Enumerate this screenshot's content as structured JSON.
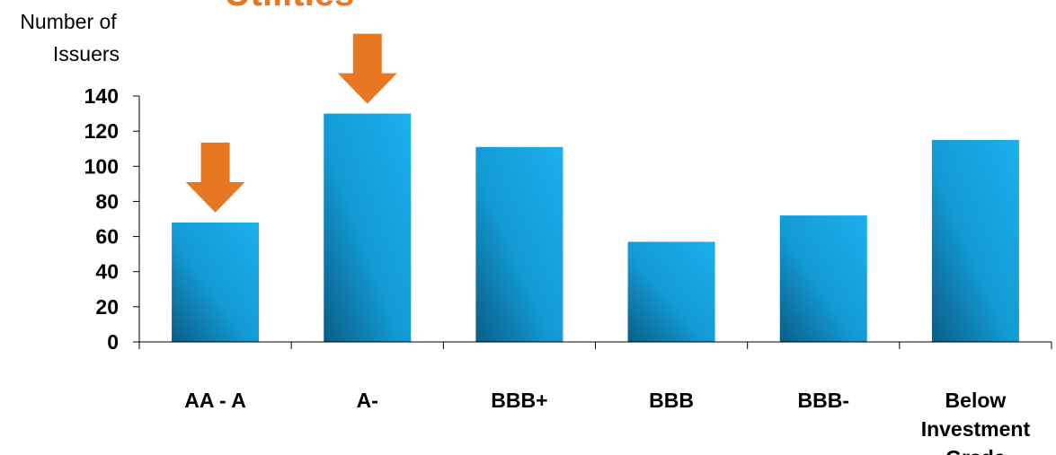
{
  "chart_data": {
    "type": "bar",
    "title": "Utilities",
    "ylabel": [
      "Number of",
      "Issuers"
    ],
    "xlabel": "",
    "categories": [
      "AA - A",
      "A-",
      "BBB+",
      "BBB",
      "BBB-",
      "Below Investment Grade"
    ],
    "category_lines": [
      [
        "AA - A"
      ],
      [
        "A-"
      ],
      [
        "BBB+"
      ],
      [
        "BBB"
      ],
      [
        "BBB-"
      ],
      [
        "Below",
        "Investment",
        "Grade"
      ]
    ],
    "values": [
      68,
      130,
      111,
      57,
      72,
      115
    ],
    "yticks": [
      "0",
      "20",
      "40",
      "60",
      "80",
      "100",
      "120",
      "140"
    ],
    "ylim": [
      0,
      140
    ],
    "grid": false,
    "highlighted_categories": [
      "AA - A",
      "A-"
    ],
    "colors": {
      "bar_light": "#1ab0ec",
      "bar_dark": "#0a5e85",
      "arrow": "#e87722",
      "title": "#e87722",
      "axis": "#000000"
    }
  }
}
